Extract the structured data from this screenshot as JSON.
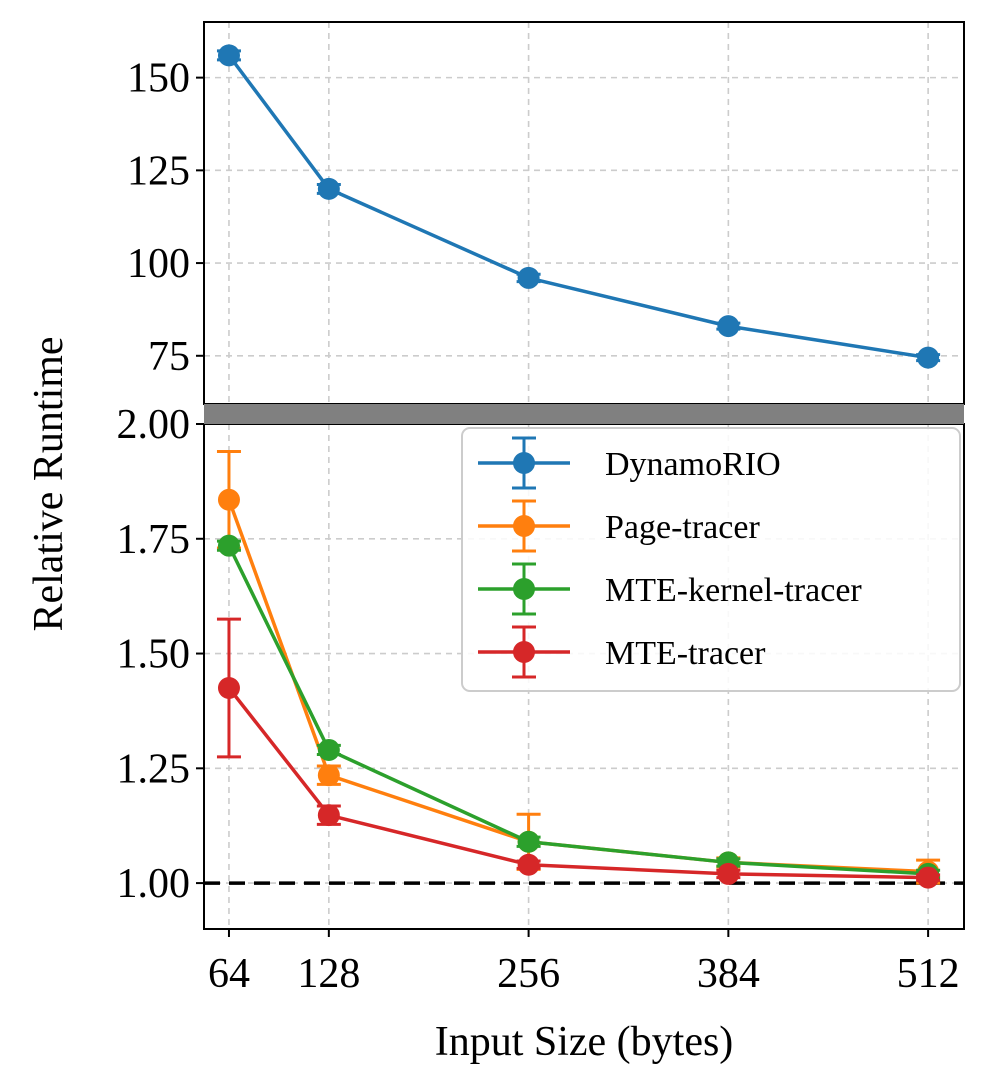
{
  "chart_data": {
    "type": "line",
    "xlabel": "Input Size (bytes)",
    "ylabel": "Relative Runtime",
    "x": [
      64,
      128,
      256,
      384,
      512
    ],
    "xticks": [
      "64",
      "128",
      "256",
      "384",
      "512"
    ],
    "xlim": [
      48,
      535
    ],
    "broken_axis": true,
    "upper_panel": {
      "ylim": [
        62,
        165
      ],
      "yticks": [
        "75",
        "100",
        "125",
        "150"
      ],
      "ytick_values": [
        75,
        100,
        125,
        150
      ]
    },
    "lower_panel": {
      "ylim": [
        0.9,
        2.0
      ],
      "yticks": [
        "1.00",
        "1.25",
        "1.50",
        "1.75",
        "2.00"
      ],
      "ytick_values": [
        1.0,
        1.25,
        1.5,
        1.75,
        2.0
      ],
      "reference_line": 1.0
    },
    "grid": true,
    "legend_position": "upper-right of lower panel",
    "series": [
      {
        "name": "DynamoRIO",
        "color": "#1f77b4",
        "panel": "upper",
        "values": [
          156,
          120,
          96,
          83,
          74.5
        ],
        "errors": [
          1.2,
          1.2,
          1.0,
          0.8,
          0.8
        ]
      },
      {
        "name": "Page-tracer",
        "color": "#ff7f0e",
        "panel": "lower",
        "values": [
          1.835,
          1.235,
          1.09,
          1.045,
          1.025
        ],
        "errors": [
          0.105,
          0.02,
          0.06,
          0.01,
          0.025
        ]
      },
      {
        "name": "MTE-kernel-tracer",
        "color": "#2ca02c",
        "panel": "lower",
        "values": [
          1.735,
          1.29,
          1.09,
          1.045,
          1.02
        ],
        "errors": [
          0.01,
          0.01,
          0.01,
          0.008,
          0.008
        ]
      },
      {
        "name": "MTE-tracer",
        "color": "#d62728",
        "panel": "lower",
        "values": [
          1.425,
          1.148,
          1.04,
          1.02,
          1.012
        ],
        "errors": [
          0.15,
          0.02,
          0.008,
          0.008,
          0.006
        ]
      }
    ]
  }
}
